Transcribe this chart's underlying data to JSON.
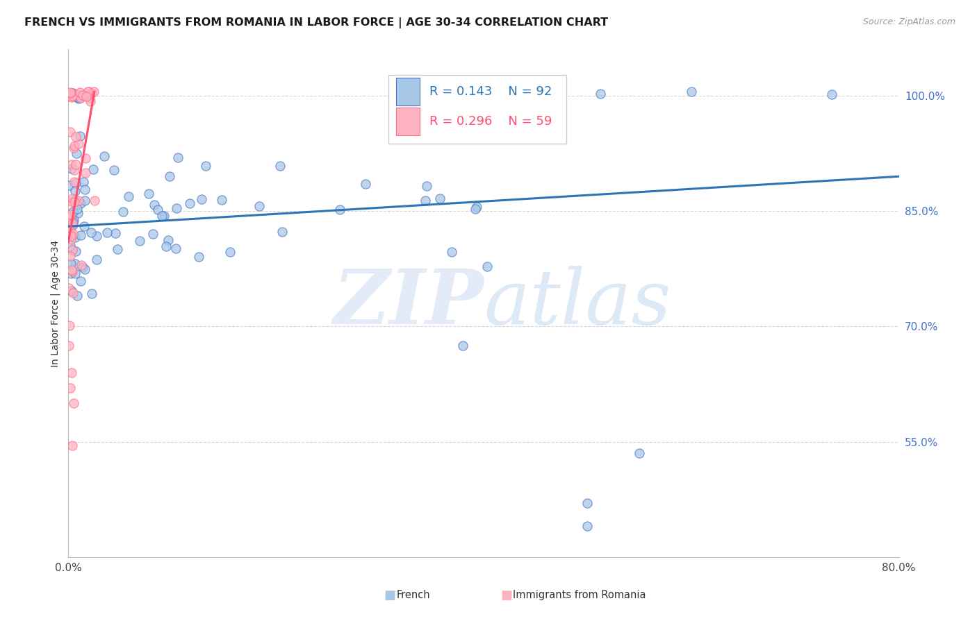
{
  "title": "FRENCH VS IMMIGRANTS FROM ROMANIA IN LABOR FORCE | AGE 30-34 CORRELATION CHART",
  "source": "Source: ZipAtlas.com",
  "ylabel": "In Labor Force | Age 30-34",
  "xlim": [
    0.0,
    0.8
  ],
  "ylim": [
    0.4,
    1.06
  ],
  "xtick_positions": [
    0.0,
    0.1,
    0.2,
    0.3,
    0.4,
    0.5,
    0.6,
    0.7,
    0.8
  ],
  "xticklabels": [
    "0.0%",
    "",
    "",
    "",
    "",
    "",
    "",
    "",
    "80.0%"
  ],
  "yticks_right": [
    0.55,
    0.7,
    0.85,
    1.0
  ],
  "ytick_right_labels": [
    "55.0%",
    "70.0%",
    "85.0%",
    "100.0%"
  ],
  "watermark_zip": "ZIP",
  "watermark_atlas": "atlas",
  "legend_french_R": "0.143",
  "legend_french_N": "92",
  "legend_romania_R": "0.296",
  "legend_romania_N": "59",
  "blue_fill": "#A8C8E8",
  "blue_edge": "#4472C4",
  "pink_fill": "#FFB3C1",
  "pink_edge": "#FF6B8A",
  "blue_line": "#2E75B6",
  "pink_line": "#FF4D6D",
  "grid_color": "#CCCCCC",
  "right_axis_color": "#4472C4",
  "french_trend_x0": 0.0,
  "french_trend_x1": 0.8,
  "french_trend_y0": 0.83,
  "french_trend_y1": 0.895,
  "romania_trend_x0": 0.0,
  "romania_trend_x1": 0.025,
  "romania_trend_y0": 0.81,
  "romania_trend_y1": 1.005,
  "title_fontsize": 11.5,
  "source_fontsize": 9,
  "tick_fontsize": 11,
  "legend_fontsize": 13,
  "ylabel_fontsize": 10
}
